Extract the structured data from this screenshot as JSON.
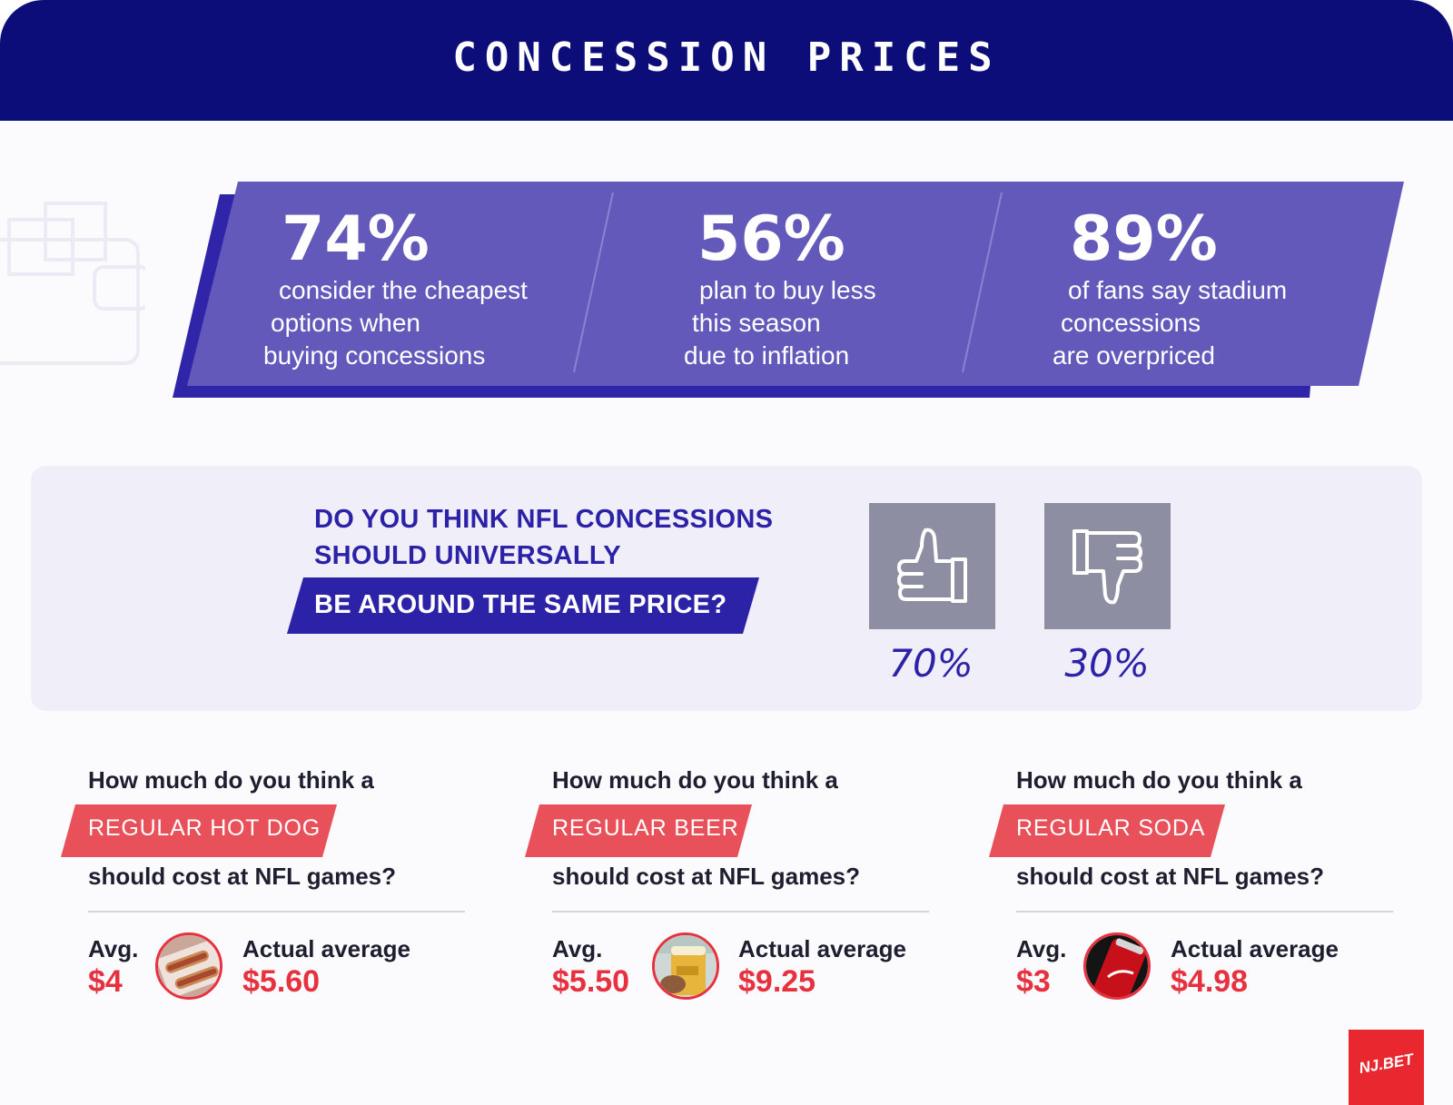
{
  "header": {
    "title": "CONCESSION PRICES"
  },
  "colors": {
    "header_bg": "#0d0d7a",
    "band": "#6259bb",
    "band_shadow": "#3025a8",
    "accent_red": "#e8313f",
    "poll_text": "#2c22a8",
    "vote_box": "#8e8ea3"
  },
  "stats": [
    {
      "value": "74%",
      "lines": [
        "consider the cheapest",
        "options when",
        "buying concessions"
      ]
    },
    {
      "value": "56%",
      "lines": [
        "plan to buy less",
        "this season",
        "due to inflation"
      ]
    },
    {
      "value": "89%",
      "lines": [
        "of fans say stadium",
        "concessions",
        "are overpriced"
      ]
    }
  ],
  "poll": {
    "question_lines": [
      "DO YOU THINK NFL CONCESSIONS",
      "SHOULD UNIVERSALLY",
      "BE AROUND THE SAME PRICE?"
    ],
    "options": [
      {
        "icon": "thumbs-up-icon",
        "percent": "70%"
      },
      {
        "icon": "thumbs-down-icon",
        "percent": "30%"
      }
    ]
  },
  "questions": [
    {
      "prefix": "How much do you think a",
      "item": "REGULAR HOT DOG",
      "suffix": "should cost at NFL games?",
      "avg_label": "Avg.",
      "avg_value": "$4",
      "actual_label": "Actual average",
      "actual_value": "$5.60",
      "photo": "hot-dog-photo"
    },
    {
      "prefix": "How much do you think a",
      "item": "REGULAR BEER",
      "suffix": "should cost at NFL games?",
      "avg_label": "Avg.",
      "avg_value": "$5.50",
      "actual_label": "Actual average",
      "actual_value": "$9.25",
      "photo": "beer-photo"
    },
    {
      "prefix": "How much do you think a",
      "item": "REGULAR SODA",
      "suffix": "should cost at NFL games?",
      "avg_label": "Avg.",
      "avg_value": "$3",
      "actual_label": "Actual average",
      "actual_value": "$4.98",
      "photo": "soda-can-photo"
    }
  ],
  "brand": {
    "logo_text": "NJ.BET"
  }
}
